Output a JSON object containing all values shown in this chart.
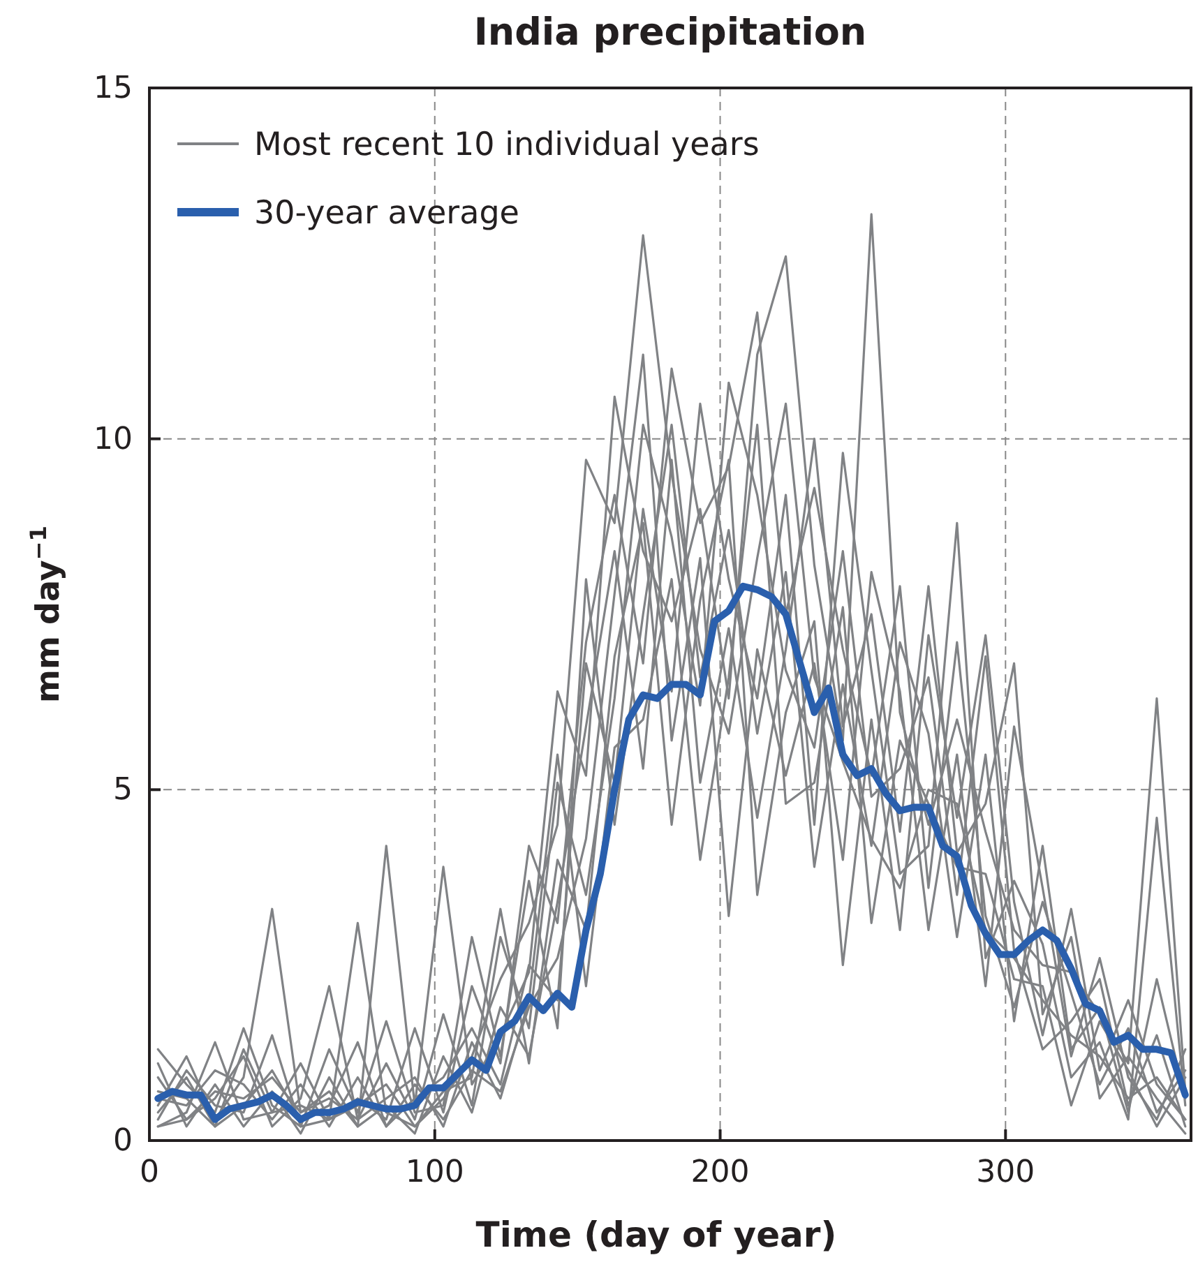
{
  "chart_data": {
    "type": "line",
    "title": "India precipitation",
    "xlabel": "Time (day of year)",
    "ylabel": "mm day$^{−1}$",
    "x": [
      3,
      13,
      23,
      33,
      43,
      53,
      63,
      73,
      83,
      93,
      103,
      113,
      123,
      133,
      143,
      153,
      163,
      173,
      183,
      193,
      203,
      213,
      223,
      233,
      243,
      253,
      263,
      273,
      283,
      293,
      303,
      313,
      323,
      333,
      343,
      353,
      363
    ],
    "xlim": [
      0,
      365
    ],
    "xticks": [
      0,
      100,
      200,
      300
    ],
    "ylim": [
      0,
      15
    ],
    "yticks": [
      0,
      5,
      10,
      15
    ],
    "grid": true,
    "legend": "top left",
    "line_style": "solid",
    "marker": "none",
    "series": [
      {
        "name": "Most recent 10 individual years",
        "color": "#808285",
        "values": [
          1.3,
          0.8,
          0.4,
          1.6,
          0.5,
          0.2,
          0.3,
          3.1,
          0.4,
          0.2,
          0.6,
          1.2,
          2.3,
          3.1,
          4.5,
          9.7,
          8.8,
          12.9,
          9.5,
          7.0,
          5.8,
          8.3,
          10.5,
          6.6,
          5.4,
          4.3,
          3.6,
          5.0,
          4.8,
          3.0,
          2.6,
          2.0,
          1.5,
          1.2,
          0.6,
          0.9,
          0.3
        ]
      },
      {
        "color": "#808285",
        "values": [
          0.5,
          1.2,
          0.3,
          0.9,
          3.3,
          0.4,
          0.7,
          0.2,
          4.2,
          0.5,
          3.9,
          0.8,
          1.5,
          2.4,
          6.4,
          5.2,
          10.6,
          8.4,
          7.4,
          9.0,
          6.3,
          11.2,
          12.6,
          8.2,
          5.7,
          13.2,
          6.1,
          4.5,
          6.0,
          4.4,
          3.0,
          2.5,
          2.4,
          1.8,
          1.1,
          6.3,
          0.7
        ]
      },
      {
        "color": "#808285",
        "values": [
          0.2,
          0.4,
          1.4,
          0.3,
          0.4,
          1.1,
          0.3,
          0.6,
          0.3,
          1.6,
          0.4,
          2.2,
          1.1,
          4.2,
          3.1,
          7.1,
          9.2,
          6.8,
          11.0,
          8.8,
          9.6,
          11.8,
          7.5,
          9.3,
          7.0,
          5.2,
          7.9,
          3.6,
          7.1,
          3.2,
          1.9,
          3.4,
          2.1,
          0.8,
          1.6,
          0.4,
          1.0
        ]
      },
      {
        "color": "#808285",
        "values": [
          0.9,
          0.3,
          0.6,
          1.2,
          0.2,
          0.6,
          2.2,
          0.3,
          1.1,
          0.3,
          1.8,
          0.5,
          2.9,
          1.6,
          5.1,
          3.5,
          6.3,
          10.2,
          8.6,
          6.2,
          10.8,
          9.2,
          6.7,
          5.6,
          8.4,
          4.9,
          5.3,
          6.6,
          3.5,
          6.9,
          2.7,
          1.3,
          1.7,
          2.3,
          0.5,
          1.5,
          0.2
        ]
      },
      {
        "color": "#808285",
        "values": [
          0.4,
          0.9,
          0.2,
          0.5,
          1.0,
          0.3,
          0.5,
          1.4,
          0.2,
          0.6,
          0.9,
          1.6,
          0.8,
          2.5,
          2.0,
          6.8,
          5.1,
          9.0,
          6.4,
          10.5,
          8.0,
          6.3,
          9.2,
          4.5,
          9.8,
          6.7,
          3.8,
          4.2,
          8.8,
          2.6,
          3.7,
          2.8,
          0.9,
          1.4,
          0.3,
          4.6,
          0.5
        ]
      },
      {
        "color": "#808285",
        "values": [
          1.1,
          0.2,
          0.8,
          0.2,
          0.7,
          0.1,
          0.9,
          0.2,
          0.5,
          0.1,
          1.2,
          0.4,
          1.9,
          1.2,
          3.4,
          5.9,
          8.4,
          5.3,
          9.7,
          5.1,
          7.3,
          4.6,
          7.0,
          10.0,
          5.9,
          7.5,
          4.4,
          7.9,
          4.1,
          4.8,
          6.8,
          1.8,
          2.9,
          0.6,
          1.2,
          0.6,
          0.1
        ]
      },
      {
        "color": "#808285",
        "values": [
          0.6,
          0.5,
          1.0,
          0.8,
          0.3,
          0.8,
          0.2,
          0.9,
          0.2,
          0.8,
          0.3,
          1.0,
          0.7,
          1.9,
          2.6,
          4.3,
          7.8,
          11.2,
          5.7,
          8.3,
          3.2,
          7.0,
          5.2,
          6.8,
          4.0,
          8.1,
          6.4,
          3.0,
          5.5,
          2.2,
          5.9,
          3.6,
          1.2,
          2.6,
          0.9,
          0.3,
          1.3
        ]
      },
      {
        "color": "#808285",
        "values": [
          0.3,
          1.0,
          0.5,
          0.4,
          1.5,
          0.2,
          1.3,
          0.4,
          1.7,
          0.4,
          0.5,
          2.9,
          1.2,
          3.7,
          1.6,
          8.0,
          4.5,
          7.5,
          10.2,
          6.6,
          8.7,
          5.8,
          8.1,
          3.9,
          6.5,
          4.2,
          7.1,
          5.8,
          2.9,
          5.5,
          1.7,
          4.2,
          1.3,
          1.9,
          0.4,
          2.3,
          0.6
        ]
      },
      {
        "color": "#808285",
        "values": [
          0.7,
          0.6,
          0.2,
          1.3,
          0.4,
          0.5,
          0.3,
          0.5,
          0.8,
          0.2,
          0.7,
          0.9,
          3.3,
          1.1,
          4.0,
          3.0,
          6.9,
          8.8,
          4.5,
          7.7,
          9.7,
          3.5,
          6.1,
          7.4,
          2.5,
          6.0,
          3.0,
          7.2,
          4.6,
          7.2,
          3.4,
          1.5,
          3.3,
          1.0,
          2.0,
          0.8,
          0.3
        ]
      },
      {
        "color": "#808285",
        "values": [
          0.2,
          0.3,
          0.7,
          0.6,
          0.9,
          0.4,
          0.6,
          0.3,
          0.6,
          0.9,
          0.2,
          1.4,
          0.6,
          2.0,
          5.5,
          2.2,
          5.6,
          6.0,
          8.0,
          4.0,
          6.6,
          10.2,
          4.8,
          5.1,
          7.6,
          3.1,
          5.7,
          4.8,
          3.9,
          3.8,
          2.3,
          2.2,
          0.5,
          1.7,
          1.0,
          0.2,
          0.9
        ]
      },
      {
        "name": "30-year average",
        "color": "#2a5fad",
        "x": [
          3,
          8,
          13,
          18,
          23,
          28,
          33,
          38,
          43,
          48,
          53,
          58,
          63,
          68,
          73,
          78,
          83,
          88,
          93,
          98,
          103,
          108,
          113,
          118,
          123,
          128,
          133,
          138,
          143,
          148,
          153,
          158,
          163,
          168,
          173,
          178,
          183,
          188,
          193,
          198,
          203,
          208,
          213,
          218,
          223,
          228,
          233,
          238,
          243,
          248,
          253,
          258,
          263,
          268,
          273,
          278,
          283,
          288,
          293,
          298,
          303,
          308,
          313,
          318,
          323,
          328,
          333,
          338,
          343,
          348,
          353,
          358,
          363
        ],
        "values": [
          0.6,
          0.7,
          0.65,
          0.65,
          0.3,
          0.45,
          0.5,
          0.55,
          0.65,
          0.5,
          0.3,
          0.4,
          0.4,
          0.45,
          0.55,
          0.5,
          0.45,
          0.45,
          0.5,
          0.75,
          0.75,
          0.95,
          1.15,
          1.0,
          1.55,
          1.7,
          2.05,
          1.85,
          2.1,
          1.9,
          3.0,
          3.8,
          5.0,
          6.0,
          6.35,
          6.3,
          6.5,
          6.5,
          6.35,
          7.4,
          7.55,
          7.9,
          7.85,
          7.75,
          7.5,
          6.8,
          6.1,
          6.45,
          5.5,
          5.2,
          5.3,
          4.95,
          4.7,
          4.75,
          4.75,
          4.2,
          4.05,
          3.35,
          2.95,
          2.65,
          2.65,
          2.85,
          3.0,
          2.85,
          2.45,
          1.95,
          1.85,
          1.4,
          1.5,
          1.3,
          1.3,
          1.25,
          0.65
        ]
      }
    ]
  }
}
